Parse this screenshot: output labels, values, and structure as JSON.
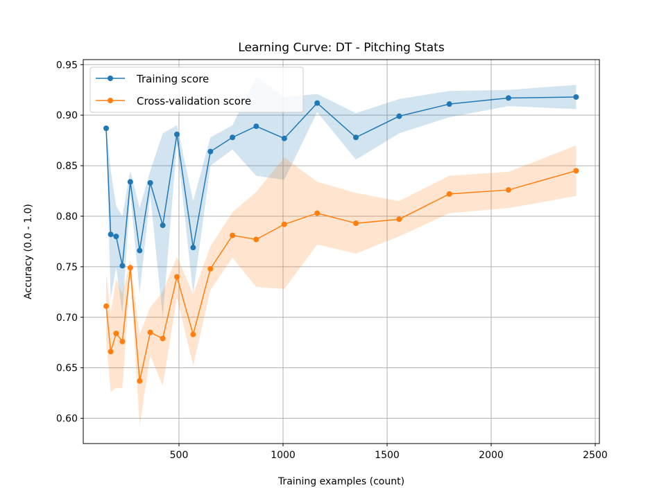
{
  "chart_data": {
    "type": "line",
    "title": "Learning Curve: DT - Pitching Stats",
    "xlabel": "Training examples (count)",
    "ylabel": "Accuracy (0.0 - 1.0)",
    "xlim": [
      40,
      2520
    ],
    "ylim": [
      0.575,
      0.955
    ],
    "xticks": [
      500,
      1000,
      1500,
      2000,
      2500
    ],
    "yticks": [
      0.6,
      0.65,
      0.7,
      0.75,
      0.8,
      0.85,
      0.9,
      0.95
    ],
    "grid": true,
    "legend_position": "top-left",
    "x": [
      150,
      172,
      198,
      228,
      266,
      311,
      362,
      422,
      490,
      568,
      651,
      757,
      871,
      1006,
      1164,
      1350,
      1558,
      1799,
      2083,
      2408
    ],
    "series": [
      {
        "name": "Training score",
        "color": "#1f77b4",
        "values": [
          0.887,
          0.782,
          0.78,
          0.751,
          0.834,
          0.766,
          0.833,
          0.791,
          0.881,
          0.769,
          0.864,
          0.878,
          0.889,
          0.877,
          0.912,
          0.878,
          0.899,
          0.911,
          0.917,
          0.918
        ],
        "upper": [
          0.89,
          0.845,
          0.81,
          0.8,
          0.845,
          0.808,
          0.845,
          0.882,
          0.89,
          0.815,
          0.878,
          0.89,
          0.938,
          0.918,
          0.921,
          0.902,
          0.916,
          0.924,
          0.925,
          0.93
        ],
        "lower": [
          0.884,
          0.718,
          0.75,
          0.703,
          0.823,
          0.724,
          0.821,
          0.7,
          0.872,
          0.723,
          0.85,
          0.866,
          0.84,
          0.836,
          0.903,
          0.856,
          0.882,
          0.898,
          0.909,
          0.906
        ]
      },
      {
        "name": "Cross-validation score",
        "color": "#ff7f0e",
        "values": [
          0.711,
          0.666,
          0.684,
          0.676,
          0.749,
          0.637,
          0.685,
          0.679,
          0.74,
          0.683,
          0.748,
          0.781,
          0.777,
          0.792,
          0.803,
          0.793,
          0.797,
          0.822,
          0.826,
          0.845
        ],
        "upper": [
          0.745,
          0.705,
          0.738,
          0.723,
          0.757,
          0.683,
          0.71,
          0.725,
          0.76,
          0.723,
          0.77,
          0.804,
          0.824,
          0.858,
          0.834,
          0.823,
          0.815,
          0.84,
          0.844,
          0.87
        ],
        "lower": [
          0.678,
          0.626,
          0.63,
          0.63,
          0.742,
          0.593,
          0.662,
          0.632,
          0.72,
          0.652,
          0.727,
          0.759,
          0.73,
          0.728,
          0.772,
          0.763,
          0.78,
          0.803,
          0.808,
          0.82
        ]
      }
    ]
  }
}
